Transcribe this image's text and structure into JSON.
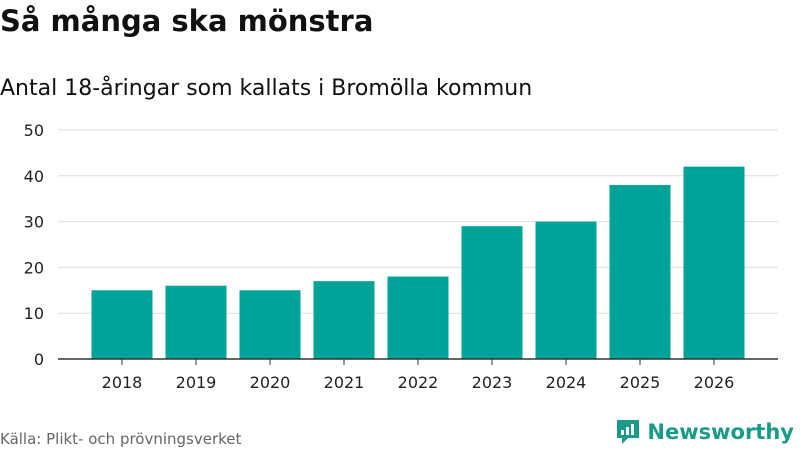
{
  "header": {
    "title": "Så många ska mönstra",
    "subtitle": "Antal 18-åringar som kallats i Bromölla kommun"
  },
  "footer": {
    "source": "Källa: Plikt- och prövningsverket",
    "brand": "Newsworthy"
  },
  "colors": {
    "bar": "#00a398",
    "grid": "#dddddd",
    "axis": "#333333",
    "brand": "#1a9a88"
  },
  "chart_data": {
    "type": "bar",
    "title": "Så många ska mönstra",
    "subtitle": "Antal 18-åringar som kallats i Bromölla kommun",
    "xlabel": "",
    "ylabel": "",
    "categories": [
      "2018",
      "2019",
      "2020",
      "2021",
      "2022",
      "2023",
      "2024",
      "2025",
      "2026"
    ],
    "values": [
      15,
      16,
      15,
      17,
      18,
      29,
      30,
      38,
      42
    ],
    "ylim": [
      0,
      50
    ],
    "yticks": [
      0,
      10,
      20,
      30,
      40,
      50
    ],
    "grid": true
  }
}
